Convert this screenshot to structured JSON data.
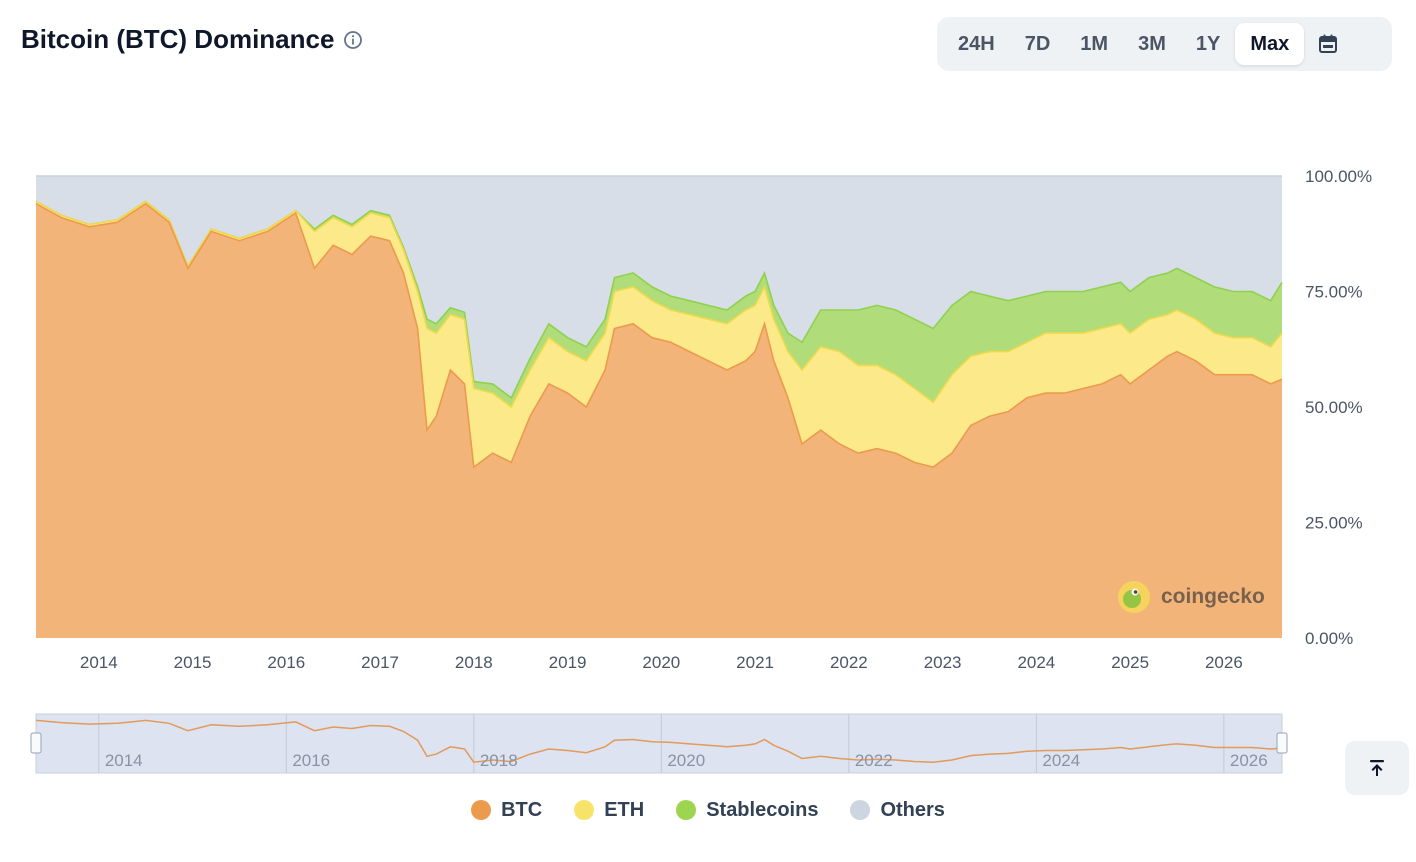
{
  "header": {
    "title": "Bitcoin (BTC) Dominance",
    "ranges": [
      "24H",
      "7D",
      "1M",
      "3M",
      "1Y",
      "Max"
    ],
    "active_range": "Max",
    "icons": {
      "info": "info-icon",
      "calendar": "calendar-icon",
      "scroll_top": "arrow-up-to-line-icon"
    }
  },
  "watermark": {
    "text": "coingecko",
    "icon": "coingecko-logo-icon"
  },
  "colors": {
    "btc": "#f3b47a",
    "btc_line": "#ec9a4d",
    "eth": "#fbe98a",
    "eth_line": "#f0d94a",
    "stable": "#b0dd7a",
    "stable_line": "#8fd14f",
    "others": "#d7dee8",
    "others_line": "#c8d1dc"
  },
  "chart_data": {
    "type": "area",
    "stacked": true,
    "x": [
      2013.33,
      2013.6,
      2013.9,
      2014.2,
      2014.5,
      2014.75,
      2014.95,
      2015.2,
      2015.5,
      2015.8,
      2016.1,
      2016.3,
      2016.5,
      2016.7,
      2016.9,
      2017.1,
      2017.25,
      2017.4,
      2017.5,
      2017.6,
      2017.75,
      2017.9,
      2018.0,
      2018.2,
      2018.4,
      2018.6,
      2018.8,
      2019.0,
      2019.2,
      2019.4,
      2019.5,
      2019.7,
      2019.9,
      2020.1,
      2020.3,
      2020.5,
      2020.7,
      2020.9,
      2021.0,
      2021.1,
      2021.2,
      2021.35,
      2021.5,
      2021.7,
      2021.9,
      2022.1,
      2022.3,
      2022.5,
      2022.7,
      2022.9,
      2023.1,
      2023.3,
      2023.5,
      2023.7,
      2023.9,
      2024.1,
      2024.3,
      2024.5,
      2024.7,
      2024.9,
      2025.0,
      2025.2,
      2025.4,
      2025.5,
      2025.7,
      2025.9,
      2026.1,
      2026.3,
      2026.5,
      2026.62
    ],
    "xticks": [
      "2014",
      "2015",
      "2016",
      "2017",
      "2018",
      "2019",
      "2020",
      "2021",
      "2022",
      "2023",
      "2024",
      "2025",
      "2026"
    ],
    "yticks": [
      "0.00%",
      "25.00%",
      "50.00%",
      "75.00%",
      "100.00%"
    ],
    "ylim": [
      0,
      100
    ],
    "legend_position": "bottom",
    "series": [
      {
        "name": "BTC",
        "values": [
          94,
          91,
          89,
          90,
          94,
          90,
          80,
          88,
          86,
          88,
          92,
          80,
          85,
          83,
          87,
          86,
          79,
          67,
          45,
          48,
          58,
          55,
          37,
          40,
          38,
          48,
          55,
          53,
          50,
          58,
          67,
          68,
          65,
          64,
          62,
          60,
          58,
          60,
          62,
          68,
          60,
          52,
          42,
          45,
          42,
          40,
          41,
          40,
          38,
          37,
          40,
          46,
          48,
          49,
          52,
          53,
          53,
          54,
          55,
          57,
          55,
          58,
          61,
          62,
          60,
          57,
          57,
          57,
          55,
          56
        ]
      },
      {
        "name": "ETH",
        "values": [
          0.5,
          0.5,
          0.5,
          0.5,
          0.5,
          0.5,
          0.5,
          0.5,
          0.5,
          0.5,
          0.5,
          8,
          6,
          6,
          5,
          5,
          5,
          8,
          22,
          18,
          12,
          14,
          17,
          13,
          12,
          10,
          10,
          9,
          10,
          8,
          8,
          8,
          8,
          7,
          8,
          9,
          10,
          11,
          10,
          8,
          9,
          10,
          16,
          18,
          20,
          19,
          18,
          17,
          16,
          14,
          17,
          15,
          14,
          13,
          12,
          13,
          13,
          12,
          12,
          11,
          11,
          11,
          9,
          9,
          9,
          9,
          8,
          8,
          8,
          10
        ]
      },
      {
        "name": "Stablecoins",
        "values": [
          0,
          0,
          0,
          0,
          0,
          0,
          0,
          0,
          0,
          0,
          0,
          0.5,
          0.5,
          0.5,
          0.5,
          0.5,
          0.5,
          1,
          2,
          2,
          1.5,
          1.5,
          1.5,
          2,
          2,
          2.5,
          3,
          3,
          3,
          3,
          3,
          3,
          3,
          3,
          3,
          3,
          3,
          3,
          3,
          3,
          3,
          4,
          6,
          8,
          9,
          12,
          13,
          14,
          15,
          16,
          15,
          14,
          12,
          11,
          10,
          9,
          9,
          9,
          9,
          9,
          9,
          9,
          9,
          9,
          9,
          10,
          10,
          10,
          10,
          11
        ]
      },
      {
        "name": "Others",
        "values": [
          5.5,
          8.5,
          10.5,
          9.5,
          5.5,
          9.5,
          19.5,
          11.5,
          13.5,
          11.5,
          7.5,
          11.5,
          8.5,
          10.5,
          7.5,
          8.5,
          15.5,
          24,
          31,
          32,
          28.5,
          29.5,
          44.5,
          45,
          48,
          39.5,
          32,
          35,
          37,
          31,
          22,
          21,
          24,
          26,
          27,
          28,
          29,
          26,
          25,
          21,
          28,
          34,
          36,
          29,
          29,
          29,
          28,
          29,
          31,
          33,
          28,
          25,
          26,
          27,
          26,
          25,
          25,
          25,
          24,
          23,
          25,
          22,
          21,
          20,
          22,
          24,
          25,
          25,
          27,
          23
        ]
      }
    ]
  },
  "navigator": {
    "labels": [
      "2014",
      "2016",
      "2018",
      "2020",
      "2022",
      "2024",
      "2026"
    ]
  }
}
